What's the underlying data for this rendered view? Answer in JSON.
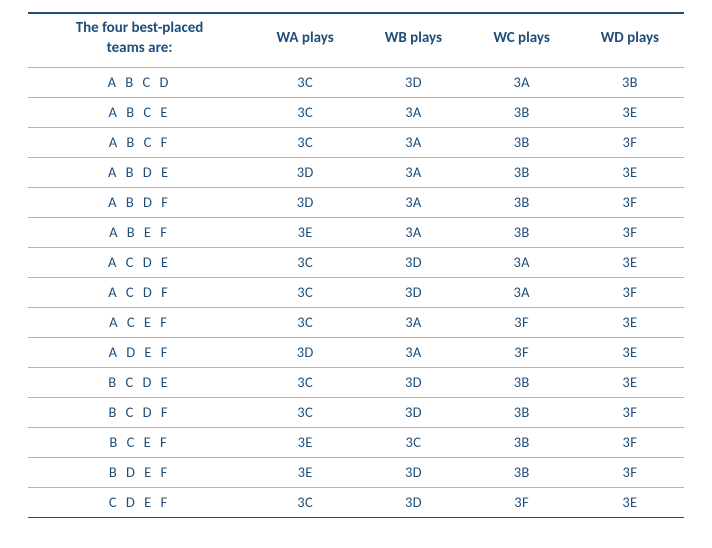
{
  "table": {
    "type": "table",
    "colors": {
      "text": "#1f4e79",
      "header_top_border": "#1f4e79",
      "row_border": "#a8b8cc",
      "last_row_border": "#1f4e79",
      "background": "#ffffff"
    },
    "fonts": {
      "family": "Segoe UI / Calibri",
      "header_size_pt": 11.5,
      "header_weight": 600,
      "body_size_pt": 11,
      "body_weight": 400
    },
    "column_widths_pct": [
      34,
      16.5,
      16.5,
      16.5,
      16.5
    ],
    "alignments": [
      "center",
      "center",
      "center",
      "center",
      "center"
    ],
    "columns": [
      "The four best-placed\nteams are:",
      "WA plays",
      "WB plays",
      "WC plays",
      "WD plays"
    ],
    "rows": [
      [
        "A B C D",
        "3C",
        "3D",
        "3A",
        "3B"
      ],
      [
        "A B C E",
        "3C",
        "3A",
        "3B",
        "3E"
      ],
      [
        "A B C F",
        "3C",
        "3A",
        "3B",
        "3F"
      ],
      [
        "A B D E",
        "3D",
        "3A",
        "3B",
        "3E"
      ],
      [
        "A B D F",
        "3D",
        "3A",
        "3B",
        "3F"
      ],
      [
        "A B E F",
        "3E",
        "3A",
        "3B",
        "3F"
      ],
      [
        "A C D E",
        "3C",
        "3D",
        "3A",
        "3E"
      ],
      [
        "A C D F",
        "3C",
        "3D",
        "3A",
        "3F"
      ],
      [
        "A C E F",
        "3C",
        "3A",
        "3F",
        "3E"
      ],
      [
        "A D E F",
        "3D",
        "3A",
        "3F",
        "3E"
      ],
      [
        "B C D E",
        "3C",
        "3D",
        "3B",
        "3E"
      ],
      [
        "B C D F",
        "3C",
        "3D",
        "3B",
        "3F"
      ],
      [
        "B C E F",
        "3E",
        "3C",
        "3B",
        "3F"
      ],
      [
        "B D E F",
        "3E",
        "3D",
        "3B",
        "3F"
      ],
      [
        "C D E F",
        "3C",
        "3D",
        "3F",
        "3E"
      ]
    ]
  }
}
